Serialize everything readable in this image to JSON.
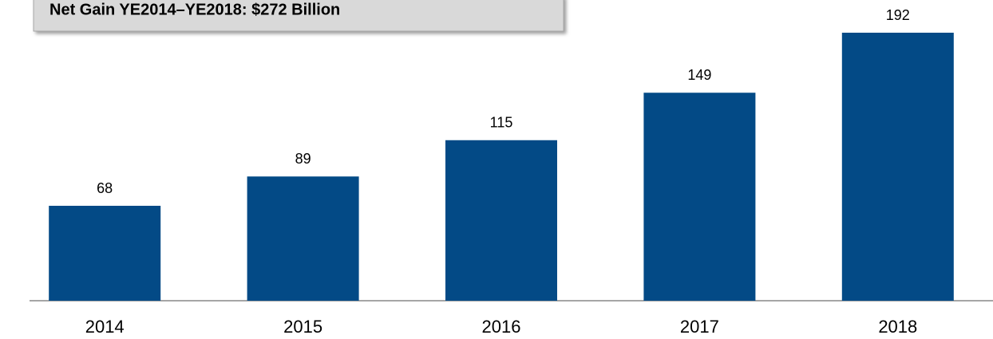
{
  "chart_data": {
    "type": "bar",
    "title": "Net Gain YE2014–YE2018: $272 Billion",
    "categories": [
      "2014",
      "2015",
      "2016",
      "2017",
      "2018"
    ],
    "values": [
      68,
      89,
      115,
      149,
      192
    ],
    "color": "#034a86"
  }
}
